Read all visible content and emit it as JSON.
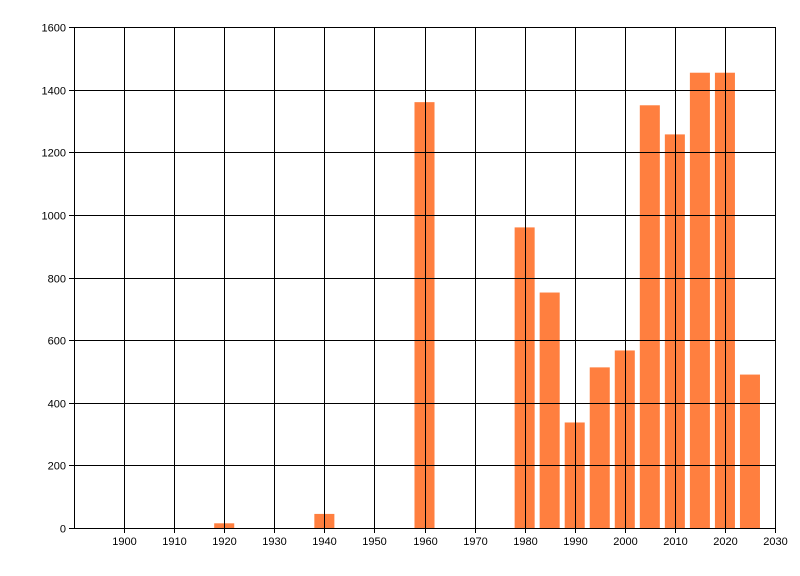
{
  "chart_data": {
    "type": "bar",
    "title": "",
    "xlabel": "",
    "ylabel": "",
    "xlim": [
      1890,
      2030
    ],
    "ylim": [
      0,
      1600
    ],
    "grid": true,
    "x_ticks": [
      1900,
      1910,
      1920,
      1930,
      1940,
      1950,
      1960,
      1970,
      1980,
      1990,
      2000,
      2010,
      2020,
      2030
    ],
    "y_ticks": [
      0,
      200,
      400,
      600,
      800,
      1000,
      1200,
      1400,
      1600
    ],
    "x_tick_labels": [
      "1900",
      "1910",
      "1920",
      "1930",
      "1940",
      "1950",
      "1960",
      "1970",
      "1980",
      "1990",
      "2000",
      "2010",
      "2020",
      "2030"
    ],
    "y_tick_labels": [
      "0",
      "200",
      "400",
      "600",
      "800",
      "1000",
      "1200",
      "1400",
      "1600"
    ],
    "bar_width_years": 4,
    "series": [
      {
        "color": "#ff7f3f",
        "points": [
          {
            "x": 1920,
            "y": 15
          },
          {
            "x": 1940,
            "y": 45
          },
          {
            "x": 1960,
            "y": 1360
          },
          {
            "x": 1980,
            "y": 960
          },
          {
            "x": 1985,
            "y": 752
          },
          {
            "x": 1990,
            "y": 337
          },
          {
            "x": 1995,
            "y": 513
          },
          {
            "x": 2000,
            "y": 567
          },
          {
            "x": 2005,
            "y": 1350
          },
          {
            "x": 2010,
            "y": 1257
          },
          {
            "x": 2015,
            "y": 1454
          },
          {
            "x": 2020,
            "y": 1454
          },
          {
            "x": 2025,
            "y": 490
          }
        ]
      }
    ]
  }
}
